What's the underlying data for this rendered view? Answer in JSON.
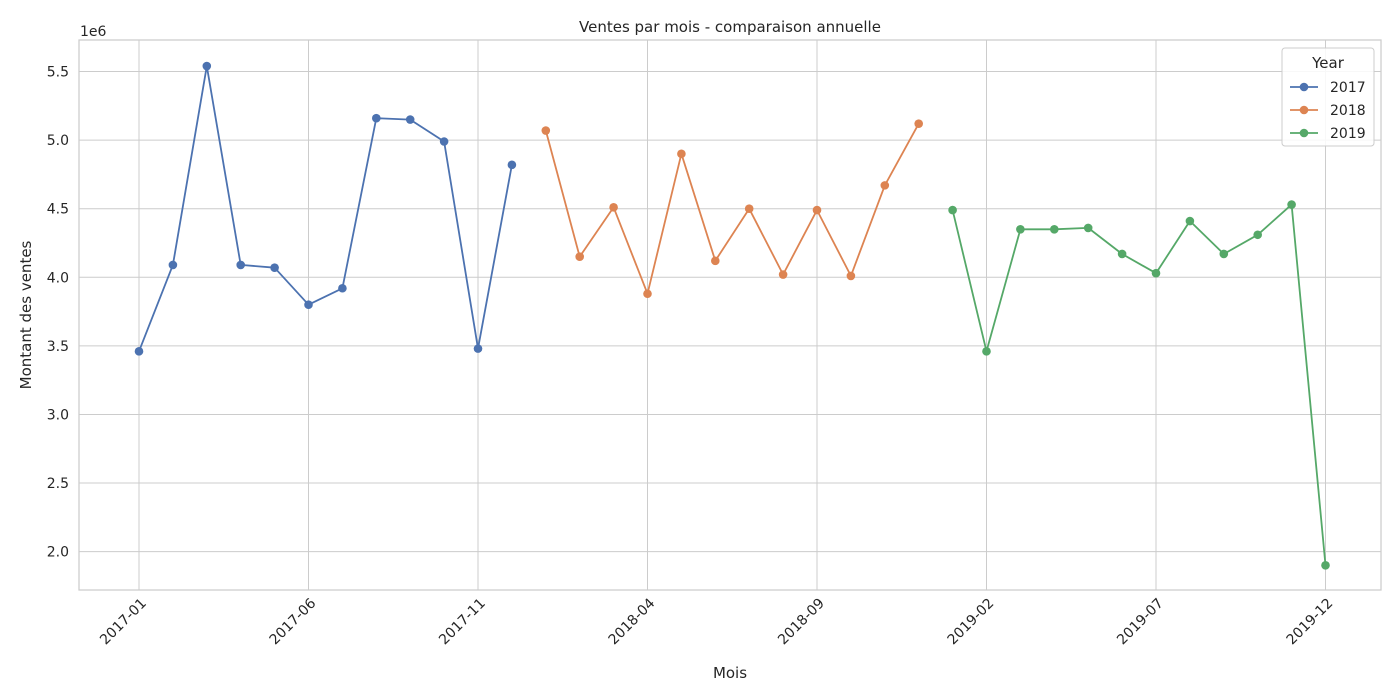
{
  "chart_data": {
    "type": "line",
    "title": "Ventes par mois - comparaison annuelle",
    "xlabel": "Mois",
    "ylabel": "Montant des ventes",
    "y_offset_label": "1e6",
    "ylim": [
      1.72,
      5.73
    ],
    "y_ticks": [
      "2.0",
      "2.5",
      "3.0",
      "3.5",
      "4.0",
      "4.5",
      "5.0",
      "5.5"
    ],
    "x_tick_labels": [
      "2017-01",
      "2017-06",
      "2017-11",
      "2018-04",
      "2018-09",
      "2019-02",
      "2019-07",
      "2019-12"
    ],
    "x_tick_rotation": 45,
    "grid": true,
    "legend": {
      "title": "Year",
      "position": "top-right"
    },
    "series": [
      {
        "name": "2017",
        "color": "#4c72b0",
        "x": [
          "2017-01",
          "2017-02",
          "2017-03",
          "2017-04",
          "2017-05",
          "2017-06",
          "2017-07",
          "2017-08",
          "2017-09",
          "2017-10",
          "2017-11",
          "2017-12"
        ],
        "y": [
          3.46,
          4.09,
          5.54,
          4.09,
          4.07,
          3.8,
          3.92,
          5.16,
          5.15,
          4.99,
          3.48,
          4.82
        ]
      },
      {
        "name": "2018",
        "color": "#dd8452",
        "x": [
          "2018-01",
          "2018-02",
          "2018-03",
          "2018-04",
          "2018-05",
          "2018-06",
          "2018-07",
          "2018-08",
          "2018-09",
          "2018-10",
          "2018-11",
          "2018-12"
        ],
        "y": [
          5.07,
          4.15,
          4.51,
          3.88,
          4.9,
          4.12,
          4.5,
          4.02,
          4.49,
          4.01,
          4.67,
          5.12
        ]
      },
      {
        "name": "2019",
        "color": "#55a868",
        "x": [
          "2019-01",
          "2019-02",
          "2019-03",
          "2019-04",
          "2019-05",
          "2019-06",
          "2019-07",
          "2019-08",
          "2019-09",
          "2019-10",
          "2019-11",
          "2019-12"
        ],
        "y": [
          4.49,
          3.46,
          4.35,
          4.35,
          4.36,
          4.17,
          4.03,
          4.41,
          4.17,
          4.31,
          4.53,
          1.9
        ]
      }
    ]
  }
}
